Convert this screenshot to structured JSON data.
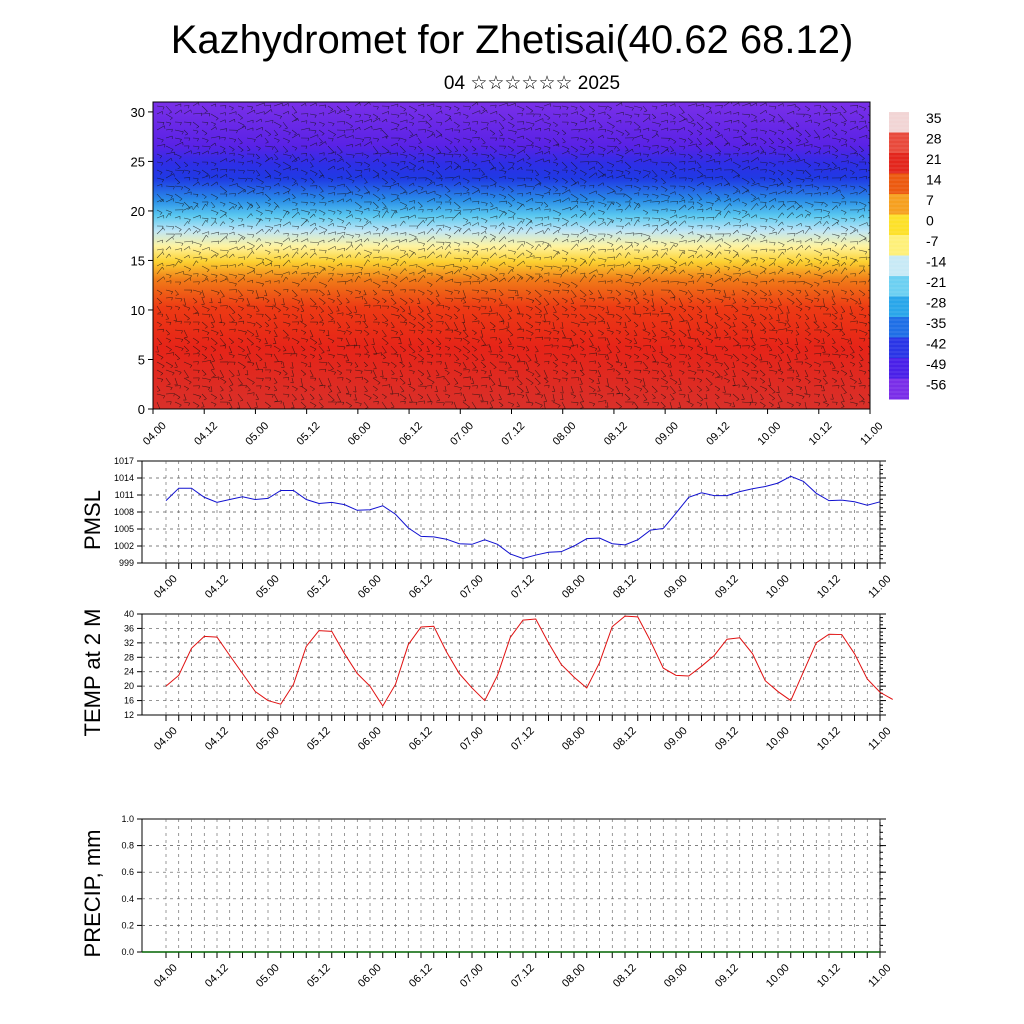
{
  "title": "Kazhydromet for Zhetisai(40.62 68.12)",
  "subtitle": "04 ☆☆☆☆☆☆ 2025",
  "time_labels": [
    "04.00",
    "04.12",
    "05.00",
    "05.12",
    "06.00",
    "06.12",
    "07.00",
    "07.12",
    "08.00",
    "08.12",
    "09.00",
    "09.12",
    "10.00",
    "10.12",
    "11.00"
  ],
  "chart_data": [
    {
      "type": "heatmap",
      "name": "cross-section",
      "ylim": [
        0,
        31
      ],
      "yticks": [
        0,
        5,
        10,
        15,
        20,
        25,
        30
      ],
      "colorbar_labels": [
        "35",
        "28",
        "21",
        "14",
        "7",
        "0",
        "-7",
        "-14",
        "-21",
        "-28",
        "-35",
        "-42",
        "-49",
        "-56"
      ],
      "colors": {
        "35": "#f2d5d5",
        "28": "#e84a3c",
        "21": "#e3261d",
        "14": "#ec5a10",
        "7": "#f6a020",
        "0": "#fde12a",
        "-7": "#fef07a",
        "-14": "#c8eaf6",
        "-21": "#6dd0f2",
        "-28": "#2aa6ea",
        "-35": "#1f6fe6",
        "-42": "#2a35e6",
        "-49": "#4a20e8",
        "-56": "#7a2ee8"
      },
      "vector_overlay": "wind-barbs"
    },
    {
      "type": "line",
      "ylabel": "PMSL",
      "ylim": [
        999,
        1017
      ],
      "yticks": [
        999,
        1002,
        1005,
        1008,
        1011,
        1014,
        1017
      ],
      "color": "#1010d0",
      "values": [
        1010,
        1012.2,
        1012.2,
        1010.6,
        1009.7,
        1010.2,
        1010.7,
        1010.2,
        1010.4,
        1011.8,
        1011.8,
        1010.2,
        1009.5,
        1009.7,
        1009.3,
        1008.3,
        1008.4,
        1009.1,
        1007.6,
        1005.2,
        1003.7,
        1003.6,
        1003.2,
        1002.4,
        1002.3,
        1003.1,
        1002.3,
        1000.6,
        999.8,
        1000.4,
        1000.9,
        1001,
        1002,
        1003.3,
        1003.4,
        1002.4,
        1002.2,
        1003.1,
        1004.8,
        1005.1,
        1007.8,
        1010.6,
        1011.4,
        1010.9,
        1010.9,
        1011.6,
        1012.1,
        1012.5,
        1013.1,
        1014.3,
        1013.4,
        1011.3,
        1010,
        1010.1,
        1009.8,
        1009.2,
        1009.8
      ]
    },
    {
      "type": "line",
      "ylabel": "TEMP at 2 M",
      "ylim": [
        12,
        40
      ],
      "yticks": [
        12,
        16,
        20,
        24,
        28,
        32,
        36,
        40
      ],
      "color": "#e01010",
      "values": [
        20,
        23,
        30.5,
        33.8,
        33.6,
        28.5,
        23.5,
        18.5,
        16,
        15,
        20.5,
        31,
        35.4,
        35.2,
        29,
        23.5,
        20,
        14.5,
        20.5,
        31.5,
        36.4,
        36.6,
        29.5,
        23.5,
        19.5,
        16,
        23,
        33.5,
        38.3,
        38.6,
        32,
        26,
        22.5,
        19.5,
        26.5,
        36.5,
        39.4,
        39.2,
        32.5,
        25,
        23,
        22.8,
        25.5,
        28.5,
        33,
        33.4,
        29,
        21.5,
        18.5,
        16,
        24,
        32,
        34.4,
        34.3,
        29,
        22,
        18.3,
        16.3
      ]
    },
    {
      "type": "line",
      "ylabel": "PRECIP, mm",
      "ylim": [
        0,
        1
      ],
      "yticks": [
        "0.0",
        "0.2",
        "0.4",
        "0.6",
        "0.8",
        "1.0"
      ],
      "color": "#006400",
      "values": [
        0
      ]
    }
  ]
}
